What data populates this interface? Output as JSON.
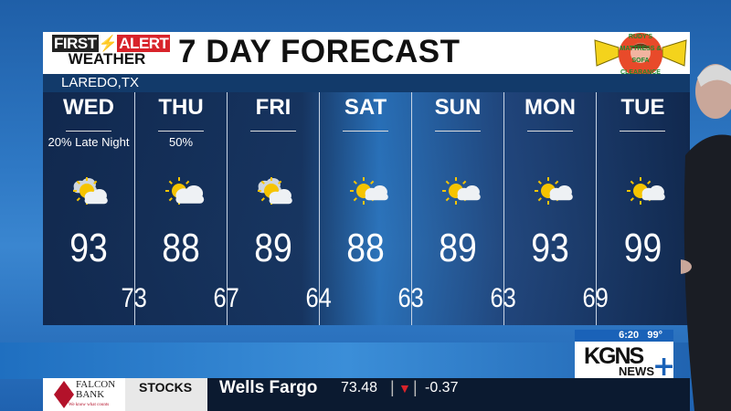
{
  "header": {
    "brand_line1_a": "FIRST",
    "brand_line1_b": "ALERT",
    "brand_line2": "WEATHER",
    "title": "7 DAY FORECAST",
    "sponsor": "RUDY'S MATTRESS & SOFA CLEARANCE WAREHOUSE"
  },
  "location": "LAREDO,TX",
  "days": [
    {
      "day": "WED",
      "precip": "20% Late Night",
      "icon": "partly-cloudy-icon",
      "high": "93"
    },
    {
      "day": "THU",
      "precip": "50%",
      "icon": "mostly-cloudy-icon",
      "high": "88"
    },
    {
      "day": "FRI",
      "precip": "",
      "icon": "partly-cloudy-icon",
      "high": "89"
    },
    {
      "day": "SAT",
      "precip": "",
      "icon": "partly-sunny-icon",
      "high": "88"
    },
    {
      "day": "SUN",
      "precip": "",
      "icon": "partly-sunny-icon",
      "high": "89"
    },
    {
      "day": "MON",
      "precip": "",
      "icon": "partly-sunny-icon",
      "high": "93"
    },
    {
      "day": "TUE",
      "precip": "",
      "icon": "partly-sunny-icon",
      "high": "99"
    }
  ],
  "lows": [
    "73",
    "67",
    "64",
    "63",
    "63",
    "69"
  ],
  "station": {
    "time": "6:20",
    "temp": "99°",
    "name": "KGNS",
    "sub": "NEWS"
  },
  "ticker": {
    "sponsor": "FALCON BANK",
    "sponsor_tag": "We know what counts",
    "label": "STOCKS",
    "company": "Wells Fargo",
    "price": "73.48",
    "direction": "down",
    "change": "-0.37",
    "down_color": "#d8232a"
  }
}
